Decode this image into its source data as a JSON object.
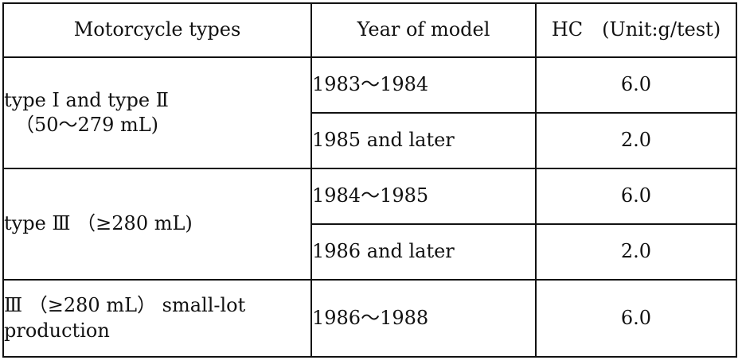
{
  "table": {
    "headers": {
      "type": "Motorcycle types",
      "year": "Year of model",
      "hc": "HC　(Unit:g/test)"
    },
    "groups": [
      {
        "type_line1": "type Ⅰ and type Ⅱ",
        "type_line2": "（50～279 mL)",
        "rows": [
          {
            "year": "1983～1984",
            "hc": "6.0"
          },
          {
            "year": "1985 and later",
            "hc": "2.0"
          }
        ]
      },
      {
        "type": "type Ⅲ （≥280 mL)",
        "rows": [
          {
            "year": "1984～1985",
            "hc": "6.0"
          },
          {
            "year": "1986 and later",
            "hc": "2.0"
          }
        ]
      },
      {
        "type": "Ⅲ （≥280 mL） small-lot production",
        "rows": [
          {
            "year": "1986～1988",
            "hc": "6.0"
          }
        ]
      }
    ]
  }
}
